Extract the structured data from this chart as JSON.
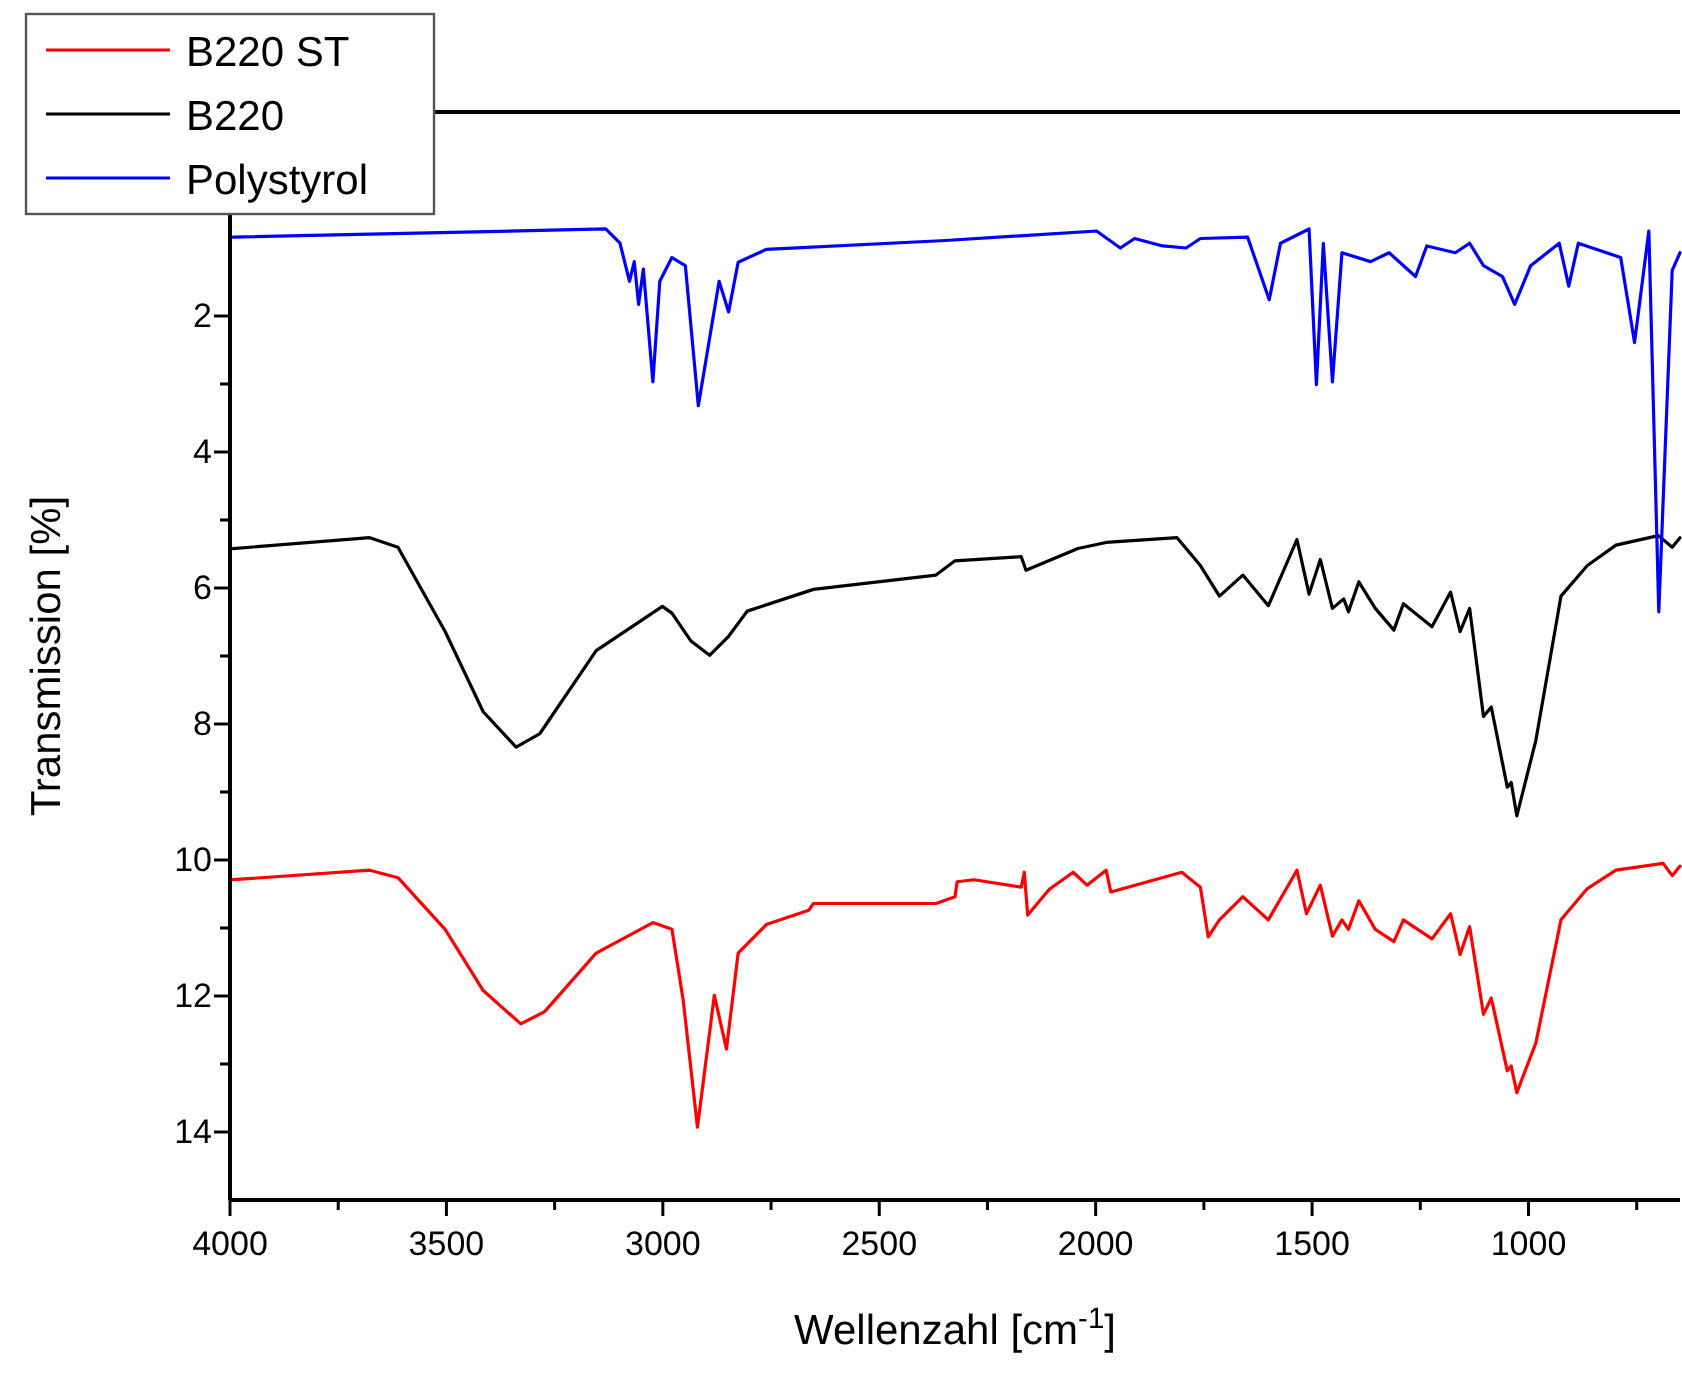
{
  "chart_data": {
    "type": "line",
    "xlabel": "Wellenzahl [cm$^{-1}$]",
    "ylabel": "Transmission [%]",
    "xlim": [
      4000,
      650
    ],
    "ylim": [
      15,
      -1
    ],
    "xticks": [
      4000,
      {
        "value": 3750,
        "label": null
      },
      3500,
      {
        "value": 3250,
        "label": null
      },
      3000,
      {
        "value": 2750,
        "label": null
      },
      2500,
      {
        "value": 2250,
        "label": null
      },
      2000,
      {
        "value": 1750,
        "label": null
      },
      1500,
      {
        "value": 1250,
        "label": null
      },
      1000,
      {
        "value": 750,
        "label": null
      }
    ],
    "yticks": [
      2,
      {
        "value": 3,
        "label": null
      },
      4,
      {
        "value": 5,
        "label": null
      },
      6,
      {
        "value": 7,
        "label": null
      },
      8,
      {
        "value": 9,
        "label": null
      },
      10,
      {
        "value": 11,
        "label": null
      },
      12,
      {
        "value": 13,
        "label": null
      },
      14
    ],
    "grid": false,
    "legend": "top left",
    "marker": "none",
    "line_style": "solid",
    "series": [
      {
        "name": "B220 ST",
        "color": "#ff0000",
        "x": [
          3993,
          3677,
          3612,
          3503,
          3415,
          3328,
          3273,
          3154,
          3023,
          2979,
          2953,
          2920,
          2881,
          2853,
          2826,
          2761,
          2663,
          2652,
          2369,
          2325,
          2320,
          2281,
          2172,
          2165,
          2157,
          2107,
          2052,
          2020,
          1976,
          1965,
          1801,
          1758,
          1740,
          1714,
          1660,
          1601,
          1535,
          1513,
          1481,
          1453,
          1431,
          1416,
          1392,
          1354,
          1311,
          1289,
          1223,
          1180,
          1158,
          1136,
          1104,
          1086,
          1049,
          1040,
          1027,
          983,
          925,
          864,
          798,
          689,
          668,
          650
        ],
        "values": [
          10.29,
          10.15,
          10.26,
          11.02,
          11.92,
          12.41,
          12.23,
          11.37,
          10.92,
          11.02,
          12.06,
          13.93,
          11.99,
          12.78,
          11.37,
          10.95,
          10.74,
          10.64,
          10.64,
          10.54,
          10.32,
          10.29,
          10.4,
          10.18,
          10.81,
          10.43,
          10.18,
          10.37,
          10.15,
          10.47,
          10.18,
          10.4,
          11.13,
          10.88,
          10.54,
          10.88,
          10.15,
          10.79,
          10.37,
          11.12,
          10.88,
          11.02,
          10.6,
          11.02,
          11.2,
          10.88,
          11.16,
          10.79,
          11.39,
          10.98,
          12.27,
          12.03,
          13.1,
          13.03,
          13.42,
          12.69,
          10.88,
          10.42,
          10.15,
          10.05,
          10.23,
          10.09
        ]
      },
      {
        "name": "B220",
        "color": "#000000",
        "x": [
          3993,
          3677,
          3612,
          3503,
          3415,
          3339,
          3284,
          3154,
          3001,
          2979,
          2935,
          2892,
          2848,
          2805,
          2652,
          2369,
          2325,
          2172,
          2161,
          2041,
          1976,
          1812,
          1758,
          1714,
          1660,
          1601,
          1535,
          1507,
          1481,
          1453,
          1427,
          1416,
          1392,
          1354,
          1311,
          1289,
          1223,
          1180,
          1158,
          1136,
          1104,
          1086,
          1049,
          1040,
          1027,
          983,
          925,
          864,
          798,
          700,
          668,
          650
        ],
        "values": [
          5.42,
          5.26,
          5.4,
          6.64,
          7.82,
          8.34,
          8.14,
          6.92,
          6.27,
          6.37,
          6.78,
          6.99,
          6.71,
          6.34,
          6.02,
          5.81,
          5.6,
          5.54,
          5.74,
          5.42,
          5.33,
          5.26,
          5.67,
          6.12,
          5.81,
          6.26,
          5.29,
          6.09,
          5.58,
          6.3,
          6.16,
          6.35,
          5.91,
          6.3,
          6.62,
          6.23,
          6.57,
          6.06,
          6.64,
          6.3,
          7.89,
          7.75,
          8.93,
          8.86,
          9.35,
          8.24,
          6.12,
          5.67,
          5.37,
          5.23,
          5.4,
          5.26
        ]
      },
      {
        "name": "Polystyrol",
        "color": "#0000ff",
        "x": [
          3993,
          3132,
          3099,
          3077,
          3066,
          3056,
          3045,
          3023,
          3007,
          2979,
          2948,
          2918,
          2870,
          2848,
          2826,
          2761,
          2347,
          1998,
          1943,
          1910,
          1845,
          1791,
          1758,
          1649,
          1599,
          1573,
          1507,
          1490,
          1474,
          1453,
          1431,
          1365,
          1322,
          1261,
          1235,
          1169,
          1136,
          1104,
          1060,
          1032,
          995,
          929,
          907,
          885,
          787,
          755,
          722,
          699,
          668,
          650
        ],
        "values": [
          0.84,
          0.72,
          0.93,
          1.49,
          1.2,
          1.83,
          1.31,
          2.97,
          1.49,
          1.14,
          1.26,
          3.32,
          1.49,
          1.94,
          1.21,
          1.02,
          0.89,
          0.75,
          1.0,
          0.86,
          0.97,
          1.0,
          0.86,
          0.84,
          1.76,
          0.93,
          0.72,
          3.01,
          0.93,
          2.97,
          1.07,
          1.2,
          1.07,
          1.42,
          0.97,
          1.07,
          0.93,
          1.26,
          1.42,
          1.83,
          1.26,
          0.93,
          1.56,
          0.93,
          1.14,
          2.39,
          0.75,
          6.35,
          1.33,
          1.07
        ]
      }
    ]
  }
}
